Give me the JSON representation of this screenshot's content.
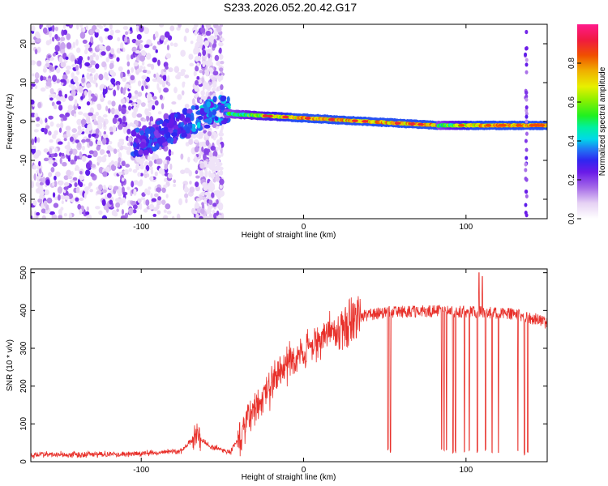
{
  "title": "S233.2026.052.20.42.G17",
  "chart_data": [
    {
      "type": "heatmap",
      "name": "spectrogram",
      "xlabel": "Height of straight line (km)",
      "ylabel": "Frequency (Hz)",
      "xlim": [
        -168,
        150
      ],
      "ylim": [
        -25,
        25
      ],
      "xticks": [
        "-100",
        "0",
        "100"
      ],
      "yticks": [
        "20",
        "10",
        "0",
        "-10",
        "-20"
      ],
      "colorbar": {
        "label": "Normalized spectral amplitude",
        "range": [
          0,
          1
        ],
        "ticks": [
          "0.0",
          "0.2",
          "0.4",
          "0.6",
          "0.8"
        ]
      },
      "features": [
        {
          "kind": "scatter",
          "x_range": [
            -168,
            -82
          ],
          "f_range": [
            -25,
            25
          ],
          "strength": "high"
        },
        {
          "kind": "scatter",
          "x_range": [
            -82,
            -67
          ],
          "f_range": [
            -25,
            25
          ],
          "strength": "low"
        },
        {
          "kind": "scatter",
          "x_range": [
            -67,
            -50
          ],
          "f_range": [
            -25,
            25
          ],
          "strength": "medium"
        },
        {
          "kind": "chirp",
          "x_start": -105,
          "f_start": -6,
          "x_end": -45,
          "f_end": 4
        },
        {
          "kind": "line",
          "x_start": -48,
          "f_start": 2,
          "x_end": 83,
          "f_end": -1,
          "peak_amplitude": 0.9
        },
        {
          "kind": "line",
          "x_start": 83,
          "f_start": -1,
          "x_end": 150,
          "f_end": -1,
          "peak_amplitude": 0.85
        },
        {
          "kind": "vertical",
          "x": 137,
          "f_range": [
            -25,
            25
          ]
        }
      ]
    },
    {
      "type": "line",
      "name": "snr",
      "xlabel": "Height of straight line (km)",
      "ylabel": "SNR (10 * v/v)",
      "xlim": [
        -168,
        150
      ],
      "ylim": [
        0,
        510
      ],
      "xticks": [
        "-100",
        "0",
        "100"
      ],
      "yticks": [
        "0",
        "100",
        "200",
        "300",
        "400",
        "500"
      ],
      "color": "#e8302a",
      "trend": {
        "x": [
          -168,
          -110,
          -75,
          -66,
          -58,
          -45,
          -35,
          -25,
          -15,
          -5,
          5,
          15,
          25,
          35,
          50,
          70,
          90,
          110,
          130,
          145,
          150
        ],
        "y": [
          18,
          20,
          28,
          70,
          40,
          25,
          110,
          170,
          230,
          280,
          310,
          340,
          360,
          385,
          395,
          398,
          398,
          395,
          390,
          375,
          365
        ]
      },
      "dropouts": [
        {
          "x": 52,
          "y": 25
        },
        {
          "x": 53.5,
          "y": 22
        },
        {
          "x": 85,
          "y": 25
        },
        {
          "x": 86.5,
          "y": 22
        },
        {
          "x": 88,
          "y": 25
        },
        {
          "x": 92,
          "y": 20
        },
        {
          "x": 93.5,
          "y": 22
        },
        {
          "x": 99,
          "y": 20
        },
        {
          "x": 102,
          "y": 22
        },
        {
          "x": 107,
          "y": 20
        },
        {
          "x": 112,
          "y": 25
        },
        {
          "x": 116,
          "y": 22
        },
        {
          "x": 120,
          "y": 20
        },
        {
          "x": 132,
          "y": 22
        },
        {
          "x": 136,
          "y": 15
        },
        {
          "x": 138,
          "y": 20
        }
      ],
      "peaks": [
        {
          "x": 108,
          "y": 500
        },
        {
          "x": 110,
          "y": 490
        }
      ]
    }
  ]
}
